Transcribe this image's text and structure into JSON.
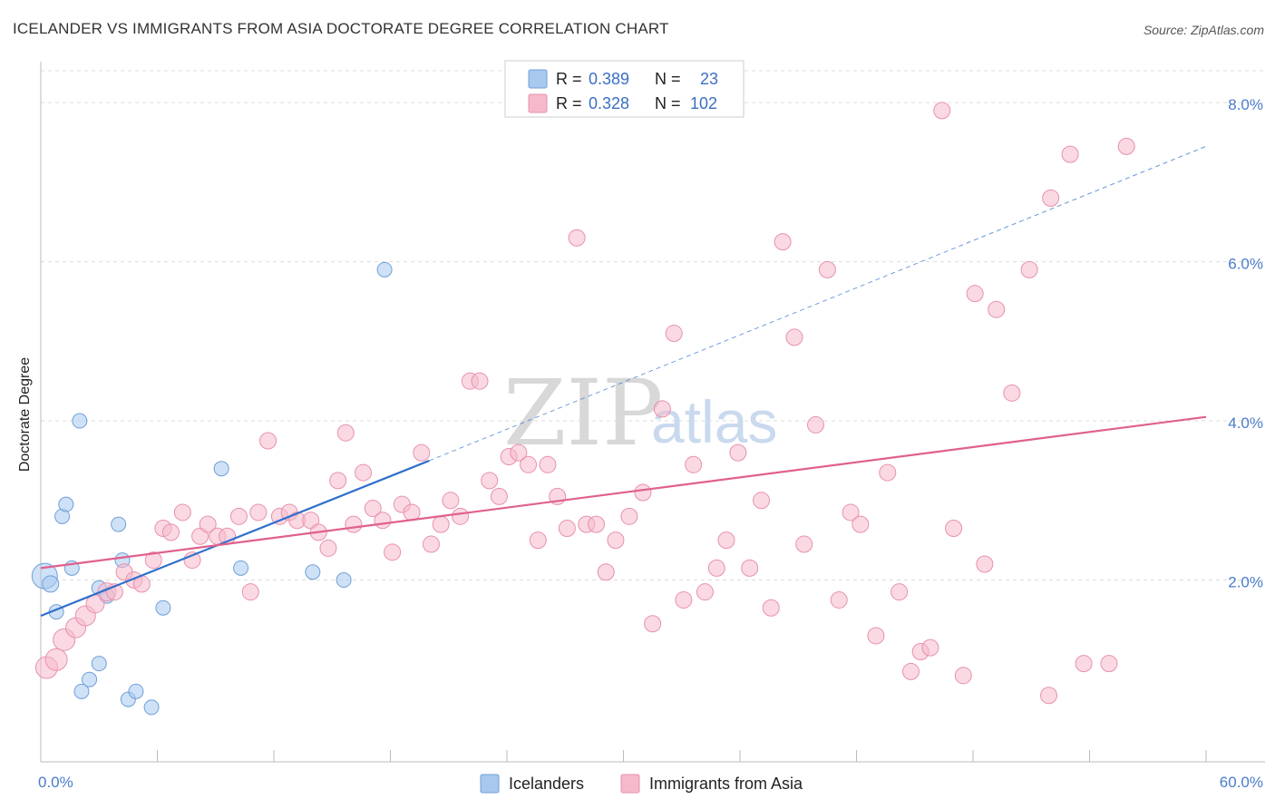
{
  "title": "ICELANDER VS IMMIGRANTS FROM ASIA DOCTORATE DEGREE CORRELATION CHART",
  "source": "Source: ZipAtlas.com",
  "watermark": {
    "zip": "ZIP",
    "atlas": "atlas"
  },
  "chart_data": {
    "type": "scatter",
    "xlabel": "",
    "ylabel": "Doctorate Degree",
    "xlim": [
      0,
      60
    ],
    "ylim": [
      0,
      8.4
    ],
    "x_tick_labels": [
      {
        "value": 0,
        "label": "0.0%"
      },
      {
        "value": 60,
        "label": "60.0%"
      }
    ],
    "y_ticks": [
      {
        "value": 2,
        "label": "2.0%"
      },
      {
        "value": 4,
        "label": "4.0%"
      },
      {
        "value": 6,
        "label": "6.0%"
      },
      {
        "value": 8,
        "label": "8.0%"
      }
    ],
    "legend": [
      {
        "name": "Icelanders",
        "r_label": "R =",
        "r": "0.389",
        "n_label": "N =",
        "n": "23",
        "color": "#a8c8ee",
        "stroke": "#6f9fd9"
      },
      {
        "name": "Immigrants from Asia",
        "r_label": "R =",
        "r": "0.328",
        "n_label": "N =",
        "n": "102",
        "color": "#f6b9cc",
        "stroke": "#e891ad"
      }
    ],
    "series": [
      {
        "name": "Icelanders",
        "color": "#a8c8ee",
        "stroke": "#6f9fd9",
        "trend": {
          "x0": 0,
          "y0": 1.55,
          "x1": 20,
          "y1": 3.5,
          "dash_to_x": 60,
          "dash_to_y": 7.45,
          "color": "#2f6fcb"
        },
        "points": [
          [
            0.2,
            2.05,
            14
          ],
          [
            0.5,
            1.95,
            9
          ],
          [
            0.8,
            1.6,
            8
          ],
          [
            1.1,
            2.8,
            8
          ],
          [
            1.3,
            2.95,
            8
          ],
          [
            1.6,
            2.15,
            8
          ],
          [
            2.0,
            4.0,
            8
          ],
          [
            2.1,
            0.6,
            8
          ],
          [
            2.5,
            0.75,
            8
          ],
          [
            3.0,
            0.95,
            8
          ],
          [
            3.0,
            1.9,
            8
          ],
          [
            3.4,
            1.8,
            8
          ],
          [
            4.0,
            2.7,
            8
          ],
          [
            4.2,
            2.25,
            8
          ],
          [
            4.5,
            0.5,
            8
          ],
          [
            4.9,
            0.6,
            8
          ],
          [
            5.7,
            0.4,
            8
          ],
          [
            6.3,
            1.65,
            8
          ],
          [
            9.3,
            3.4,
            8
          ],
          [
            10.3,
            2.15,
            8
          ],
          [
            14.0,
            2.1,
            8
          ],
          [
            15.6,
            2.0,
            8
          ],
          [
            17.7,
            5.9,
            8
          ]
        ]
      },
      {
        "name": "Immigrants from Asia",
        "color": "#f6b9cc",
        "stroke": "#e891ad",
        "trend": {
          "x0": 0,
          "y0": 2.15,
          "x1": 60,
          "y1": 4.05,
          "color": "#e0608d"
        },
        "points": [
          [
            0.3,
            0.9,
            12
          ],
          [
            0.8,
            1.0,
            12
          ],
          [
            1.2,
            1.25,
            12
          ],
          [
            1.8,
            1.4,
            11
          ],
          [
            2.3,
            1.55,
            11
          ],
          [
            2.8,
            1.7,
            10
          ],
          [
            3.4,
            1.85,
            10
          ],
          [
            3.8,
            1.85,
            9
          ],
          [
            4.3,
            2.1,
            9
          ],
          [
            4.8,
            2.0,
            9
          ],
          [
            5.2,
            1.95,
            9
          ],
          [
            5.8,
            2.25,
            9
          ],
          [
            6.3,
            2.65,
            9
          ],
          [
            6.7,
            2.6,
            9
          ],
          [
            7.3,
            2.85,
            9
          ],
          [
            7.8,
            2.25,
            9
          ],
          [
            8.2,
            2.55,
            9
          ],
          [
            8.6,
            2.7,
            9
          ],
          [
            9.1,
            2.55,
            9
          ],
          [
            9.6,
            2.55,
            9
          ],
          [
            10.2,
            2.8,
            9
          ],
          [
            10.8,
            1.85,
            9
          ],
          [
            11.2,
            2.85,
            9
          ],
          [
            11.7,
            3.75,
            9
          ],
          [
            12.3,
            2.8,
            9
          ],
          [
            12.8,
            2.85,
            9
          ],
          [
            13.2,
            2.75,
            9
          ],
          [
            13.9,
            2.75,
            9
          ],
          [
            14.3,
            2.6,
            9
          ],
          [
            14.8,
            2.4,
            9
          ],
          [
            15.3,
            3.25,
            9
          ],
          [
            15.7,
            3.85,
            9
          ],
          [
            16.1,
            2.7,
            9
          ],
          [
            16.6,
            3.35,
            9
          ],
          [
            17.1,
            2.9,
            9
          ],
          [
            17.6,
            2.75,
            9
          ],
          [
            18.1,
            2.35,
            9
          ],
          [
            18.6,
            2.95,
            9
          ],
          [
            19.1,
            2.85,
            9
          ],
          [
            19.6,
            3.6,
            9
          ],
          [
            20.1,
            2.45,
            9
          ],
          [
            20.6,
            2.7,
            9
          ],
          [
            21.1,
            3.0,
            9
          ],
          [
            21.6,
            2.8,
            9
          ],
          [
            22.1,
            4.5,
            9
          ],
          [
            22.6,
            4.5,
            9
          ],
          [
            23.1,
            3.25,
            9
          ],
          [
            23.6,
            3.05,
            9
          ],
          [
            24.1,
            3.55,
            9
          ],
          [
            24.6,
            3.6,
            9
          ],
          [
            25.1,
            3.45,
            9
          ],
          [
            25.6,
            2.5,
            9
          ],
          [
            26.1,
            3.45,
            9
          ],
          [
            26.6,
            3.05,
            9
          ],
          [
            27.1,
            2.65,
            9
          ],
          [
            27.6,
            6.3,
            9
          ],
          [
            28.1,
            2.7,
            9
          ],
          [
            28.6,
            2.7,
            9
          ],
          [
            29.1,
            2.1,
            9
          ],
          [
            29.6,
            2.5,
            9
          ],
          [
            30.3,
            2.8,
            9
          ],
          [
            31.0,
            3.1,
            9
          ],
          [
            31.5,
            1.45,
            9
          ],
          [
            32.0,
            4.15,
            9
          ],
          [
            32.6,
            5.1,
            9
          ],
          [
            33.1,
            1.75,
            9
          ],
          [
            33.6,
            3.45,
            9
          ],
          [
            34.2,
            1.85,
            9
          ],
          [
            34.8,
            2.15,
            9
          ],
          [
            35.3,
            2.5,
            9
          ],
          [
            35.9,
            3.6,
            9
          ],
          [
            36.5,
            2.15,
            9
          ],
          [
            37.1,
            3.0,
            9
          ],
          [
            37.6,
            1.65,
            9
          ],
          [
            38.2,
            6.25,
            9
          ],
          [
            38.8,
            5.05,
            9
          ],
          [
            39.3,
            2.45,
            9
          ],
          [
            39.9,
            3.95,
            9
          ],
          [
            40.5,
            5.9,
            9
          ],
          [
            41.1,
            1.75,
            9
          ],
          [
            41.7,
            2.85,
            9
          ],
          [
            42.2,
            2.7,
            9
          ],
          [
            43.0,
            1.3,
            9
          ],
          [
            43.6,
            3.35,
            9
          ],
          [
            44.2,
            1.85,
            9
          ],
          [
            44.8,
            0.85,
            9
          ],
          [
            45.3,
            1.1,
            9
          ],
          [
            45.8,
            1.15,
            9
          ],
          [
            46.4,
            7.9,
            9
          ],
          [
            47.0,
            2.65,
            9
          ],
          [
            47.5,
            0.8,
            9
          ],
          [
            48.1,
            5.6,
            9
          ],
          [
            48.6,
            2.2,
            9
          ],
          [
            49.2,
            5.4,
            9
          ],
          [
            50.0,
            4.35,
            9
          ],
          [
            50.9,
            5.9,
            9
          ],
          [
            51.9,
            0.55,
            9
          ],
          [
            52.0,
            6.8,
            9
          ],
          [
            53.0,
            7.35,
            9
          ],
          [
            53.7,
            0.95,
            9
          ],
          [
            55.0,
            0.95,
            9
          ],
          [
            55.9,
            7.45,
            9
          ]
        ]
      }
    ]
  }
}
